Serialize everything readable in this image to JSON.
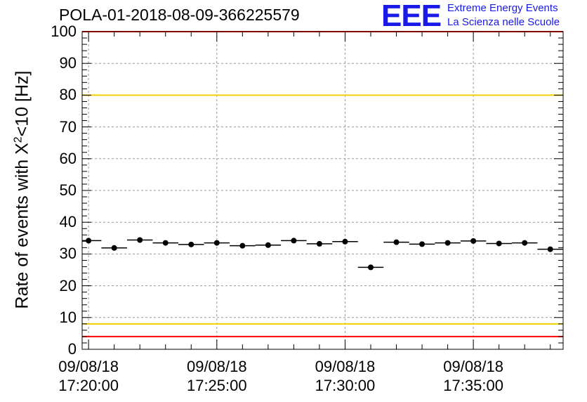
{
  "header": {
    "title": "POLA-01-2018-08-09-366225579",
    "logo_letters": "EEE",
    "logo_line1": "Extreme Energy Events",
    "logo_line2": "La Scienza nelle Scuole"
  },
  "colors": {
    "axis": "#000000",
    "grid": "#9a9a9a",
    "marker": "#000000",
    "red_line": "#ff0000",
    "yellow_line": "#f2cf00",
    "logo": "#1a1ae8"
  },
  "chart_data": {
    "type": "scatter",
    "title": "POLA-01-2018-08-09-366225579",
    "ylabel_main": "Rate of events with X",
    "ylabel_sup": "2",
    "ylabel_tail": "<10 [Hz]",
    "xlabel": "",
    "ylim": [
      0,
      100
    ],
    "xlim_minutes": [
      -0.25,
      18.5
    ],
    "yticks": [
      0,
      10,
      20,
      30,
      40,
      50,
      60,
      70,
      80,
      90,
      100
    ],
    "xticks": [
      {
        "minute": 0,
        "date": "09/08/18",
        "time": "17:20:00"
      },
      {
        "minute": 5,
        "date": "09/08/18",
        "time": "17:25:00"
      },
      {
        "minute": 10,
        "date": "09/08/18",
        "time": "17:30:00"
      },
      {
        "minute": 15,
        "date": "09/08/18",
        "time": "17:35:00"
      }
    ],
    "grid": true,
    "bin_width_minutes": 1,
    "series": [
      {
        "x_minutes": [
          0,
          1,
          2,
          3,
          4,
          5,
          6,
          7,
          8,
          9,
          10,
          11,
          12,
          13,
          14,
          15,
          16,
          17,
          18
        ],
        "y": [
          34.2,
          31.9,
          34.4,
          33.5,
          33.0,
          33.5,
          32.6,
          32.8,
          34.2,
          33.2,
          33.9,
          25.8,
          33.7,
          33.1,
          33.5,
          34.1,
          33.3,
          33.5,
          31.5
        ]
      }
    ],
    "reference_lines": [
      {
        "y": 100,
        "color": "red"
      },
      {
        "y": 80,
        "color": "yellow"
      },
      {
        "y": 8,
        "color": "yellow"
      },
      {
        "y": 4,
        "color": "red"
      }
    ]
  }
}
